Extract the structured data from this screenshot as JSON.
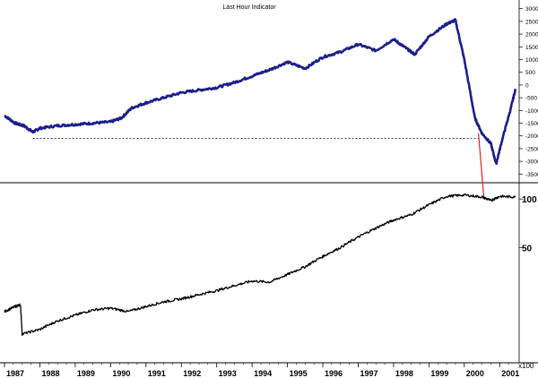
{
  "title": "Last Hour Indicator",
  "x_axis": {
    "multiplier_label": "x100",
    "year_labels": [
      "1987",
      "1988",
      "1989",
      "1990",
      "1991",
      "1992",
      "1993",
      "1994",
      "1995",
      "1996",
      "1997",
      "1998",
      "1999",
      "2000",
      "2001"
    ]
  },
  "colors": {
    "indicator": "#1a1f8a",
    "price": "#000000",
    "reference_line": "#e02020",
    "dashed_level": "#1a1f8a"
  },
  "chart_data": [
    {
      "type": "line",
      "title": "Last Hour Indicator",
      "y_axis_side": "right",
      "ylim": [
        -3700,
        3200
      ],
      "y_ticks": [
        3000,
        2500,
        2000,
        1500,
        1000,
        500,
        0,
        -500,
        -1000,
        -1500,
        -2000,
        -2500,
        -3000,
        -3500
      ],
      "dashed_reference_level": -2100,
      "series": [
        {
          "x": [
            1987.0,
            1987.3,
            1987.55,
            1987.8,
            1988.0,
            1988.5,
            1989.0,
            1989.5,
            1990.0,
            1990.3,
            1990.6,
            1991.0,
            1991.5,
            1992.0,
            1992.5,
            1993.0,
            1993.5,
            1994.0,
            1994.5,
            1995.0,
            1995.5,
            1996.0,
            1996.5,
            1997.0,
            1997.5,
            1998.0,
            1998.3,
            1998.6,
            1999.0,
            1999.5,
            1999.75,
            2000.0,
            2000.3,
            2000.5,
            2000.75,
            2000.9,
            2001.1,
            2001.3,
            2001.45
          ],
          "values": [
            -1200,
            -1500,
            -1600,
            -1850,
            -1700,
            -1600,
            -1550,
            -1500,
            -1450,
            -1300,
            -900,
            -700,
            -500,
            -300,
            -200,
            -100,
            100,
            350,
            600,
            900,
            650,
            1100,
            1300,
            1600,
            1350,
            1800,
            1500,
            1200,
            1900,
            2400,
            2550,
            1000,
            -1300,
            -1900,
            -2300,
            -3100,
            -2000,
            -1000,
            -150
          ]
        }
      ]
    },
    {
      "type": "line",
      "y_axis_side": "right",
      "y_scale": "log",
      "ylim": [
        10,
        120
      ],
      "y_ticks": [
        100,
        50
      ],
      "series": [
        {
          "x": [
            1987.0,
            1987.3,
            1987.45,
            1987.5,
            1988.0,
            1988.5,
            1989.0,
            1989.5,
            1990.0,
            1990.5,
            1991.0,
            1991.5,
            1992.0,
            1992.5,
            1993.0,
            1993.5,
            1994.0,
            1994.5,
            1995.0,
            1995.5,
            1996.0,
            1996.5,
            1997.0,
            1997.5,
            1998.0,
            1998.5,
            1999.0,
            1999.5,
            2000.0,
            2000.5,
            2000.75,
            2001.0,
            2001.45
          ],
          "values": [
            20,
            21.5,
            22,
            14.5,
            15.5,
            17.5,
            19,
            20.5,
            21,
            20,
            21.5,
            23,
            24,
            25.5,
            27,
            29,
            31,
            30.5,
            34,
            38,
            44,
            50,
            58,
            66,
            74,
            80,
            92,
            104,
            106,
            103,
            98,
            104,
            103
          ]
        }
      ]
    }
  ]
}
